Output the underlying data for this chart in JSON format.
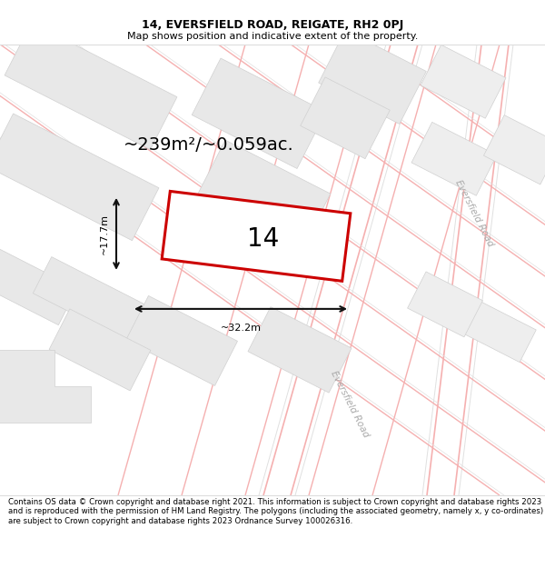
{
  "title_line1": "14, EVERSFIELD ROAD, REIGATE, RH2 0PJ",
  "title_line2": "Map shows position and indicative extent of the property.",
  "footer_text": "Contains OS data © Crown copyright and database right 2021. This information is subject to Crown copyright and database rights 2023 and is reproduced with the permission of HM Land Registry. The polygons (including the associated geometry, namely x, y co-ordinates) are subject to Crown copyright and database rights 2023 Ordnance Survey 100026316.",
  "area_label": "~239m²/~0.059ac.",
  "number_label": "14",
  "width_label": "~32.2m",
  "height_label": "~17.7m",
  "road_label_right": "Eversfield Road",
  "road_label_bottom": "Eversfield Road",
  "bg_color": "#ffffff",
  "map_bg_color": "#ffffff",
  "plot_fill_color": "#ffffff",
  "plot_edge_color": "#cc0000",
  "road_line_color": "#f5b0b0",
  "road_line_color2": "#e0e0e0",
  "building_fill_color": "#e8e8e8",
  "building_edge_color": "#d0d0d0",
  "dim_line_color": "#111111",
  "title_fontsize": 9,
  "subtitle_fontsize": 8,
  "footer_fontsize": 6.2,
  "area_fontsize": 14,
  "number_fontsize": 20,
  "dim_fontsize": 8,
  "road_label_fontsize": 7.5
}
